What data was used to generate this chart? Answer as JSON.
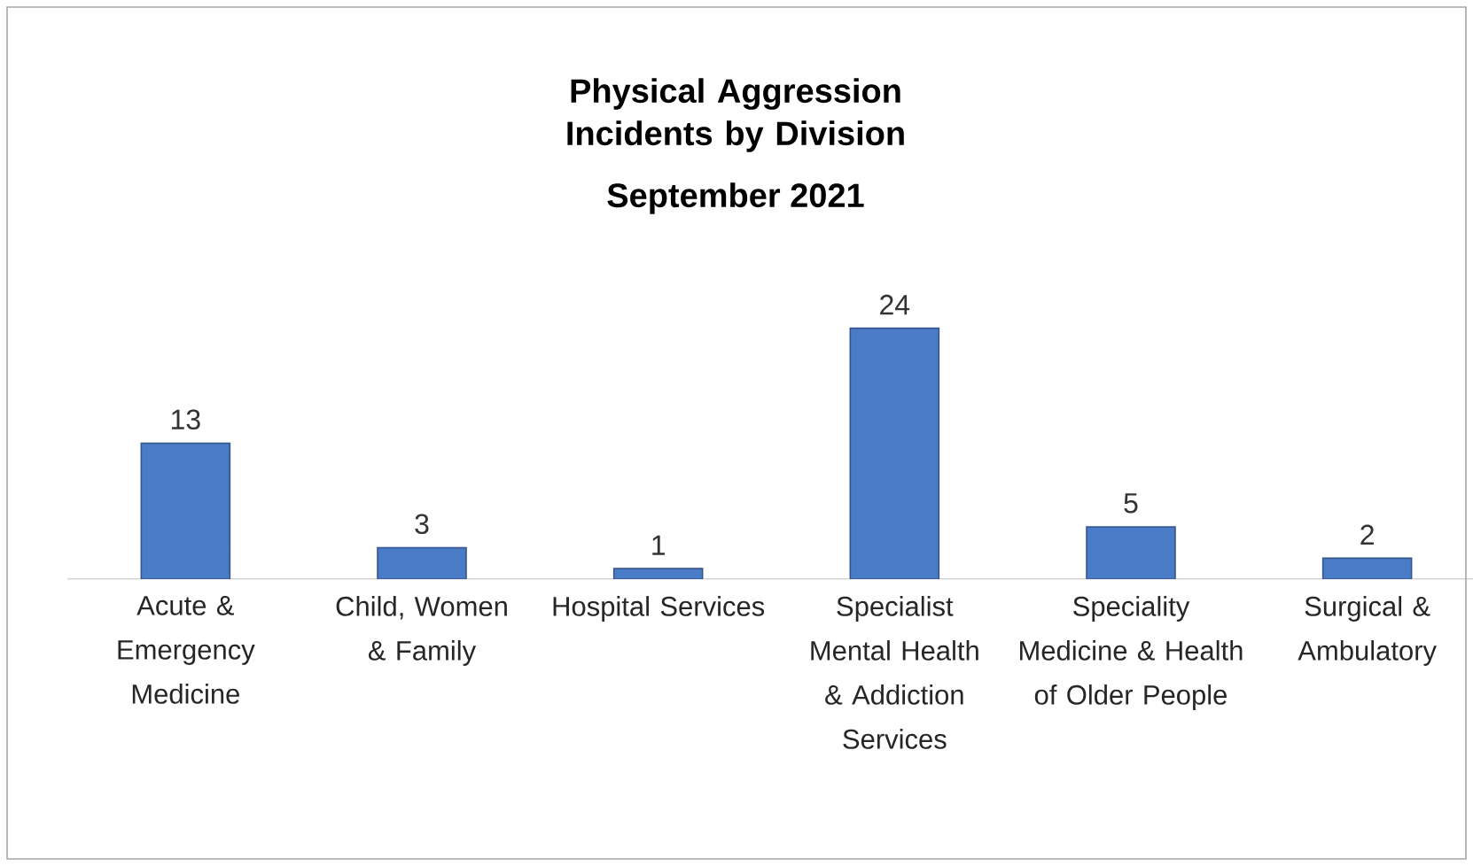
{
  "chart_data": {
    "type": "bar",
    "title": "Physical Aggression Incidents by Division",
    "subtitle": "September 2021",
    "categories": [
      "Acute & Emergency Medicine",
      "Child, Women & Family",
      "Hospital Services",
      "Specialist Mental Health & Addiction Services",
      "Speciality Medicine & Health of Older People",
      "Surgical & Ambulatory"
    ],
    "values": [
      13,
      3,
      1,
      24,
      5,
      2
    ],
    "color": "#4a7bc6",
    "data_labels": true
  }
}
